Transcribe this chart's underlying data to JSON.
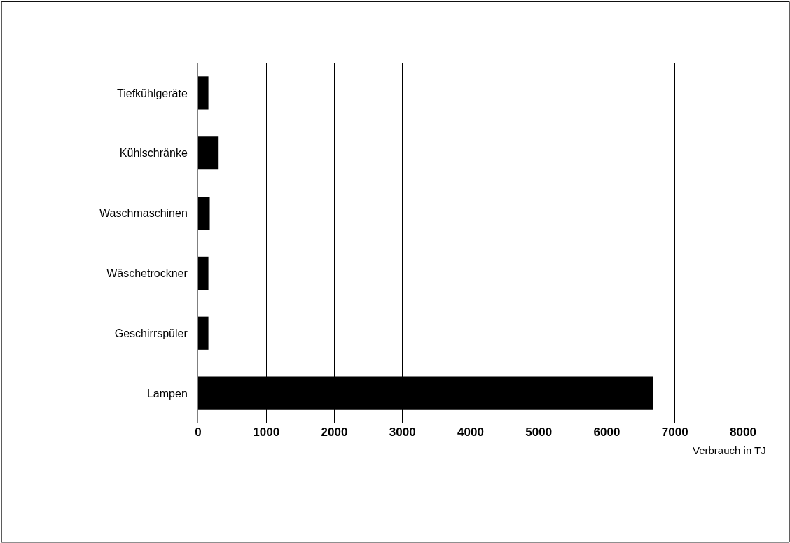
{
  "chart_data": {
    "type": "bar",
    "orientation": "horizontal",
    "categories": [
      "Tiefkühlgeräte",
      "Kühlschränke",
      "Waschmaschinen",
      "Wäschetrockner",
      "Geschirrspüler",
      "Lampen"
    ],
    "values": [
      150,
      290,
      170,
      150,
      150,
      6680
    ],
    "color": "#000000",
    "xlabel": "Verbrauch in TJ",
    "xlim": [
      0,
      8000
    ],
    "xticks": [
      0,
      1000,
      2000,
      3000,
      4000,
      5000,
      6000,
      7000,
      8000
    ],
    "grid": "x"
  }
}
